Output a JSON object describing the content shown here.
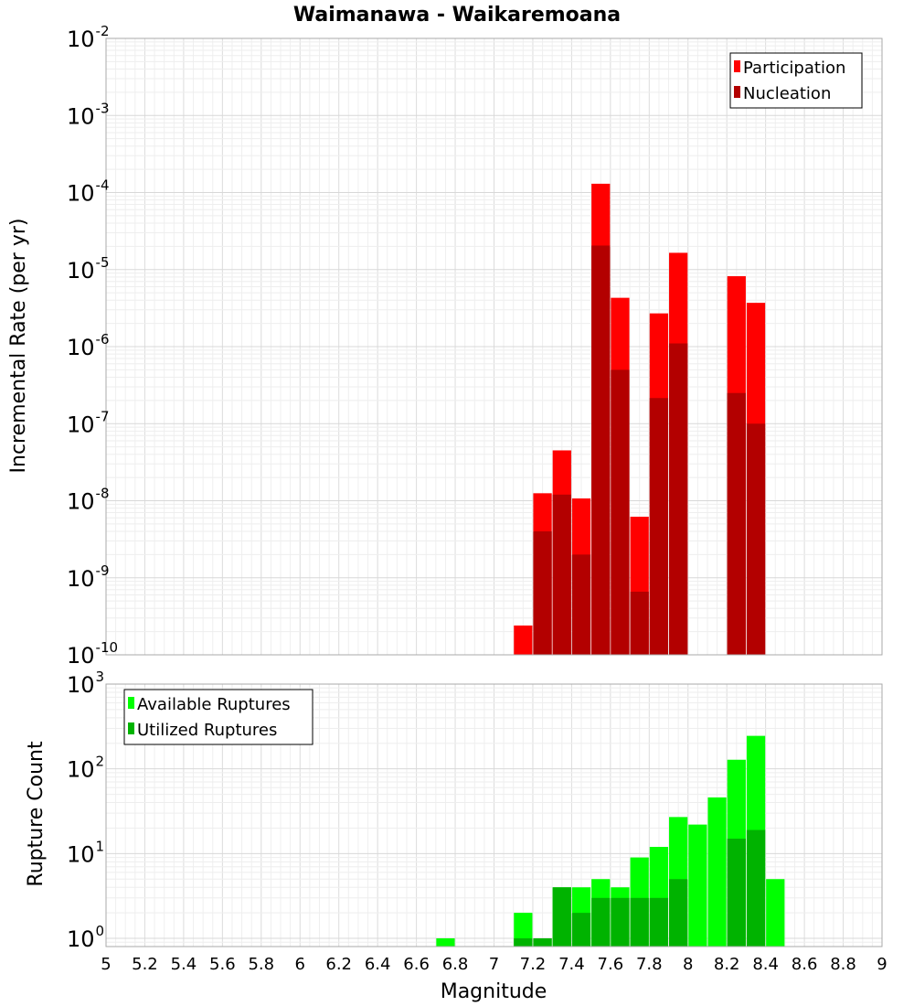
{
  "chart_data": {
    "type": "bar",
    "title": "Waimanawa - Waikaremoana",
    "xlabel": "Magnitude",
    "xlim": [
      5,
      9
    ],
    "x_ticks": [
      "5",
      "5.2",
      "5.4",
      "5.6",
      "5.8",
      "6",
      "6.2",
      "6.4",
      "6.6",
      "6.8",
      "7",
      "7.2",
      "7.4",
      "7.6",
      "7.8",
      "8",
      "8.2",
      "8.4",
      "8.6",
      "8.8",
      "9"
    ],
    "grid": true,
    "panels": [
      {
        "ylabel": "Incremental Rate (per yr)",
        "yscale": "log",
        "ylim": [
          1e-10,
          0.01
        ],
        "y_tick_exponents": [
          "-10",
          "-9",
          "-8",
          "-7",
          "-6",
          "-5",
          "-4",
          "-3",
          "-2"
        ],
        "legend_position": "top-right",
        "bin_width": 0.1,
        "series": [
          {
            "name": "Participation",
            "color": "#ff0000",
            "x": [
              7.15,
              7.25,
              7.35,
              7.45,
              7.55,
              7.65,
              7.75,
              7.85,
              7.95,
              8.25,
              8.35
            ],
            "values": [
              2.4e-10,
              1.25e-08,
              4.5e-08,
              1.07e-08,
              0.00013,
              4.3e-06,
              6.2e-09,
              2.7e-06,
              1.65e-05,
              8.2e-06,
              3.7e-06
            ]
          },
          {
            "name": "Nucleation",
            "color": "#b30000",
            "x": [
              7.15,
              7.25,
              7.35,
              7.45,
              7.55,
              7.65,
              7.75,
              7.85,
              7.95,
              8.25,
              8.35
            ],
            "values": [
              1e-10,
              4e-09,
              1.2e-08,
              2e-09,
              2.05e-05,
              5e-07,
              6.6e-10,
              2.15e-07,
              1.1e-06,
              2.5e-07,
              1e-07
            ]
          }
        ]
      },
      {
        "ylabel": "Rupture Count",
        "yscale": "log",
        "ylim": [
          0.8,
          1000
        ],
        "y_tick_exponents": [
          "0",
          "1",
          "2",
          "3"
        ],
        "legend_position": "top-left",
        "bin_width": 0.1,
        "series": [
          {
            "name": "Available Ruptures",
            "color": "#00ff00",
            "x": [
              6.75,
              7.15,
              7.25,
              7.35,
              7.45,
              7.55,
              7.65,
              7.75,
              7.85,
              7.95,
              8.05,
              8.15,
              8.25,
              8.35,
              8.45
            ],
            "values": [
              1,
              2,
              1,
              4,
              4,
              5,
              4,
              9,
              12,
              27,
              22,
              46,
              128,
              245,
              5
            ]
          },
          {
            "name": "Utilized Ruptures",
            "color": "#00b300",
            "x": [
              7.15,
              7.25,
              7.35,
              7.45,
              7.55,
              7.65,
              7.75,
              7.85,
              7.95,
              8.25,
              8.35
            ],
            "values": [
              1,
              1,
              4,
              2,
              3,
              3,
              3,
              3,
              5,
              15,
              19
            ]
          }
        ]
      }
    ]
  }
}
